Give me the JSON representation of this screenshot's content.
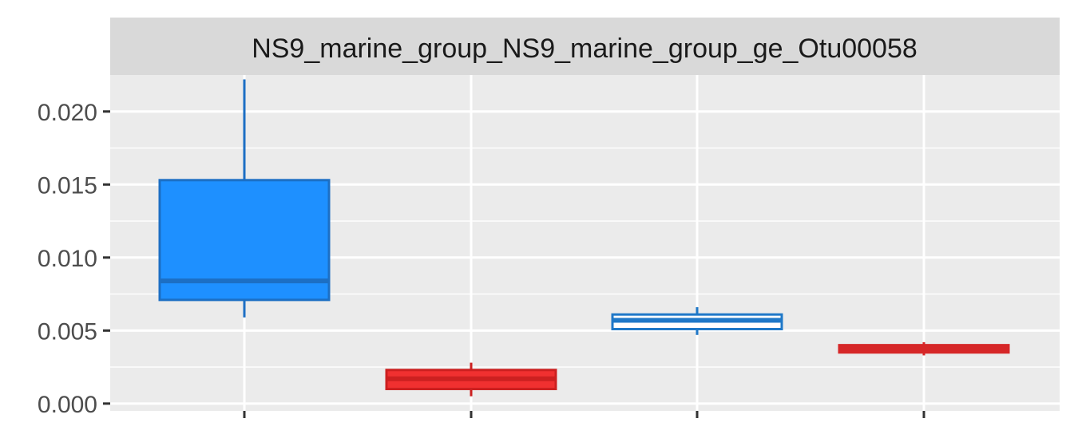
{
  "chart_data": {
    "type": "boxplot",
    "facet_title": "NS9_marine_group_NS9_marine_group_ge_Otu00058",
    "xlabel": "",
    "ylabel": "",
    "categories": [
      "",
      "",
      "",
      ""
    ],
    "y_ticks": [
      {
        "value": 0.0,
        "label": "0.000"
      },
      {
        "value": 0.005,
        "label": "0.005"
      },
      {
        "value": 0.01,
        "label": "0.010"
      },
      {
        "value": 0.015,
        "label": "0.015"
      },
      {
        "value": 0.02,
        "label": "0.020"
      }
    ],
    "ylim": [
      -0.0005,
      0.0225
    ],
    "grid": true,
    "legend": "none",
    "boxes": [
      {
        "min": 0.0059,
        "q1": 0.0071,
        "median": 0.0084,
        "q3": 0.0153,
        "max": 0.0222,
        "fill": "#1e90ff",
        "stroke": "#1c6fc4"
      },
      {
        "min": 0.0005,
        "q1": 0.001,
        "median": 0.0017,
        "q3": 0.0023,
        "max": 0.0028,
        "fill": "#f03030",
        "stroke": "#cc2020"
      },
      {
        "min": 0.0047,
        "q1": 0.0051,
        "median": 0.0057,
        "q3": 0.0061,
        "max": 0.0066,
        "fill": "#ffffff",
        "stroke": "#1f78c8"
      },
      {
        "min": 0.0033,
        "q1": 0.0035,
        "median": 0.0038,
        "q3": 0.004,
        "max": 0.0042,
        "fill": "#d62728",
        "stroke": "#d62728"
      }
    ]
  }
}
